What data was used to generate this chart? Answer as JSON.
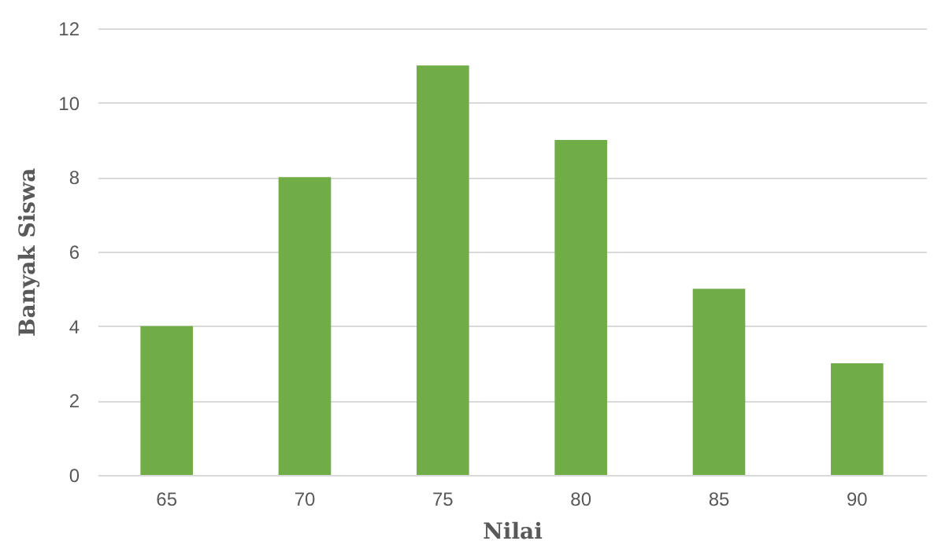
{
  "chart_data": {
    "type": "bar",
    "xlabel": "Nilai",
    "ylabel": "Banyak Siswa",
    "categories": [
      "65",
      "70",
      "75",
      "80",
      "85",
      "90"
    ],
    "values": [
      4,
      8,
      11,
      9,
      5,
      3
    ],
    "color": "#70ad47",
    "ylim": [
      0,
      12
    ],
    "yticks": [
      0,
      2,
      4,
      6,
      8,
      10,
      12
    ],
    "grid": "y"
  }
}
